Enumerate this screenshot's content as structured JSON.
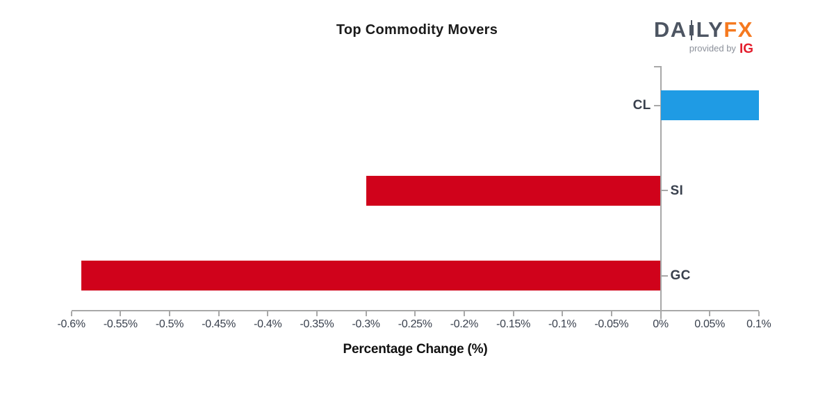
{
  "header": {
    "logo": {
      "part1": "DA",
      "part2": "LY",
      "part3": "FX",
      "provided_by": "provided by",
      "ig": "IG",
      "slate_color": "#4D5562",
      "fx_color": "#F5791F",
      "ig_color": "#E31E2D"
    }
  },
  "chart_data": {
    "type": "bar",
    "orientation": "horizontal",
    "title": "Top Commodity Movers",
    "xlabel": "Percentage Change (%)",
    "categories": [
      "CL",
      "SI",
      "GC"
    ],
    "values": [
      0.1,
      -0.3,
      -0.59
    ],
    "colors": [
      "#1F9BE4",
      "#D0021B",
      "#D0021B"
    ],
    "positive_color": "#1F9BE4",
    "negative_color": "#D0021B",
    "xlim": [
      -0.6,
      0.1
    ],
    "xticks": [
      -0.6,
      -0.55,
      -0.5,
      -0.45,
      -0.4,
      -0.35,
      -0.3,
      -0.25,
      -0.2,
      -0.15,
      -0.1,
      -0.05,
      0,
      0.05,
      0.1
    ],
    "xtick_labels": [
      "-0.6%",
      "-0.55%",
      "-0.5%",
      "-0.45%",
      "-0.4%",
      "-0.35%",
      "-0.3%",
      "-0.25%",
      "-0.2%",
      "-0.15%",
      "-0.1%",
      "-0.05%",
      "0%",
      "0.05%",
      "0.1%"
    ],
    "grid": false,
    "legend": "none",
    "axis_color": "#A8A8A8",
    "text_color": "#39404D"
  }
}
